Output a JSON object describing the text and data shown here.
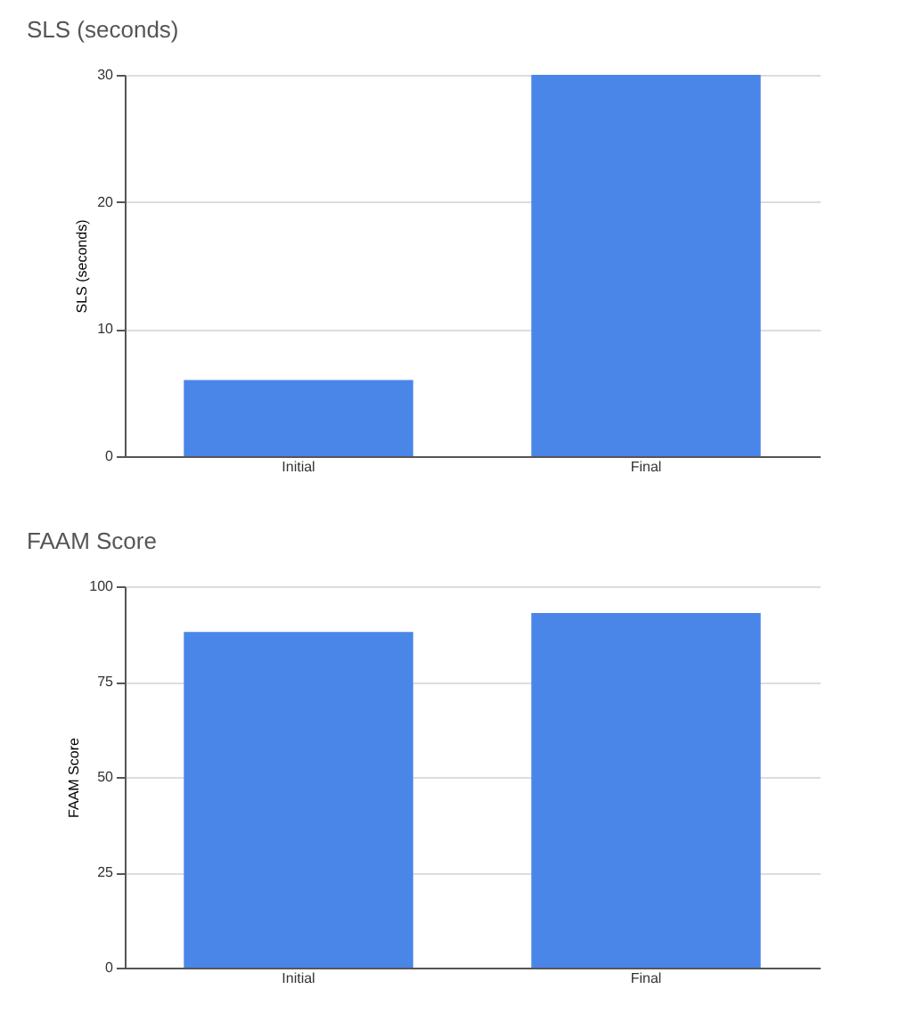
{
  "chart_data": [
    {
      "type": "bar",
      "title": "SLS (seconds)",
      "ylabel": "SLS (seconds)",
      "categories": [
        "Initial",
        "Final"
      ],
      "series": [
        {
          "color": "#4a86e8",
          "values": [
            6,
            30
          ]
        }
      ],
      "ylim": [
        0,
        30
      ],
      "yticks": [
        0,
        10,
        20,
        30
      ],
      "grid": "y"
    },
    {
      "type": "bar",
      "title": "FAAM Score",
      "ylabel": "FAAM Score",
      "categories": [
        "Initial",
        "Final"
      ],
      "series": [
        {
          "color": "#4a86e8",
          "values": [
            88,
            93
          ]
        }
      ],
      "ylim": [
        0,
        100
      ],
      "yticks": [
        0,
        25,
        50,
        75,
        100
      ],
      "grid": "y"
    }
  ]
}
